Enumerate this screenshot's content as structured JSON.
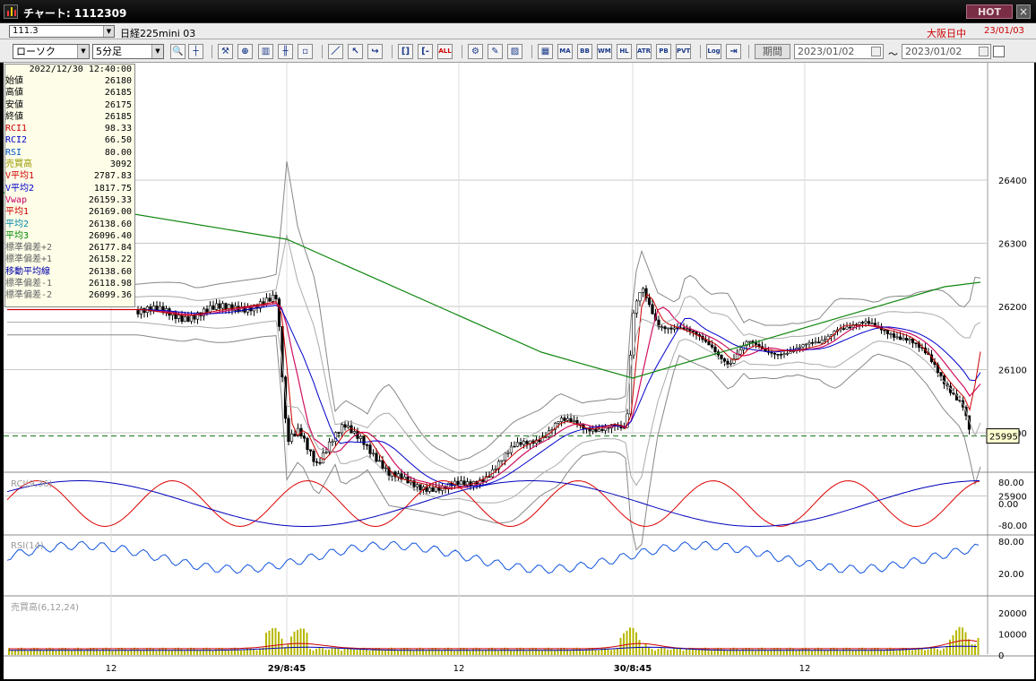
{
  "window": {
    "title": "チャート: 1112309",
    "hot_label": "HOT",
    "close_label": "×"
  },
  "infobar": {
    "code": "111.3",
    "instrument": "日経225mini 03",
    "market": "大阪日中",
    "date": "23/01/03"
  },
  "toolbar": {
    "chart_type": "ローソク",
    "interval": "5分足",
    "period_label": "期間",
    "date_from": "2023/01/02",
    "date_to": "2023/01/02",
    "tilde": "～",
    "buttons": [
      "search-icon",
      "crosshair-icon",
      "tool-icon",
      "zoom-icon",
      "bars-icon",
      "candle-tool-icon",
      "disabled-icon",
      "draw-line-icon",
      "cursor-icon",
      "arrow-icon",
      "bracket-icon",
      "bracket-minus-icon",
      "ALL",
      "wrench-icon",
      "pencil-icon",
      "color-icon",
      "grid-icon",
      "MA",
      "BB",
      "WMA",
      "HL",
      "ATR",
      "PB",
      "PVT",
      "Log",
      "export-icon"
    ]
  },
  "info_panel": {
    "timestamp": "2022/12/30  12:40:00",
    "rows": [
      {
        "label": "始値",
        "value": "26180",
        "color": "#000000"
      },
      {
        "label": "高値",
        "value": "26185",
        "color": "#000000"
      },
      {
        "label": "安値",
        "value": "26175",
        "color": "#000000"
      },
      {
        "label": "終値",
        "value": "26185",
        "color": "#000000"
      },
      {
        "label": "RCI1",
        "value": "98.33",
        "color": "#cc0000"
      },
      {
        "label": "RCI2",
        "value": "66.50",
        "color": "#0000cc"
      },
      {
        "label": "RSI",
        "value": "80.00",
        "color": "#0055cc"
      },
      {
        "label": "売買高",
        "value": "3092",
        "color": "#999900"
      },
      {
        "label": "V平均1",
        "value": "2787.83",
        "color": "#cc0000"
      },
      {
        "label": "V平均2",
        "value": "1817.75",
        "color": "#0000cc"
      },
      {
        "label": "Vwap",
        "value": "26159.33",
        "color": "#cc0066"
      },
      {
        "label": "平均1",
        "value": "26169.00",
        "color": "#cc0000"
      },
      {
        "label": "平均2",
        "value": "26138.60",
        "color": "#0088aa"
      },
      {
        "label": "平均3",
        "value": "26096.40",
        "color": "#008800"
      },
      {
        "label": "標準偏差+2",
        "value": "26177.84",
        "color": "#666666"
      },
      {
        "label": "標準偏差+1",
        "value": "26158.22",
        "color": "#666666"
      },
      {
        "label": "移動平均線",
        "value": "26138.60",
        "color": "#0000aa"
      },
      {
        "label": "標準偏差-1",
        "value": "26118.98",
        "color": "#666666"
      },
      {
        "label": "標準偏差-2",
        "value": "26099.36",
        "color": "#666666"
      }
    ]
  },
  "price_axis": {
    "ticks": [
      "26400",
      "26300",
      "26200",
      "26100",
      "26000",
      "25900"
    ],
    "current_price": "25995"
  },
  "rci": {
    "label": "RCI(9,36)",
    "ticks": [
      "80.00",
      "0.00",
      "-80.00"
    ]
  },
  "rsi": {
    "label": "RSI(14)",
    "ticks": [
      "80.00",
      "20.00"
    ]
  },
  "volume": {
    "label": "売買高(6,12,24)",
    "ticks": [
      "20000",
      "10000",
      "0"
    ]
  },
  "time_axis": {
    "labels": [
      "12",
      "29/8:45",
      "12",
      "30/8:45",
      "12"
    ]
  }
}
